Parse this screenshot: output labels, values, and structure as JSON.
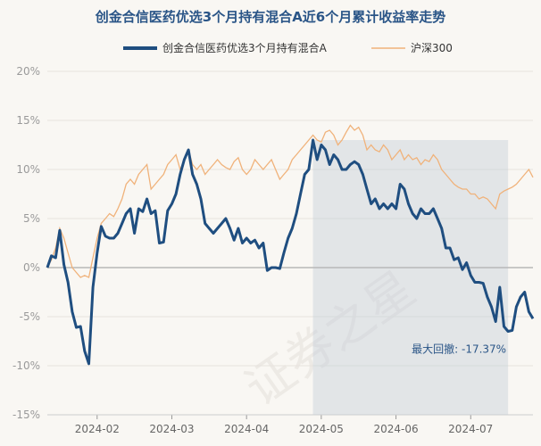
{
  "chart_data": {
    "type": "line",
    "title": "创金合信医药优选3个月持有混合A近6个月累计收益率走势",
    "ylim": [
      -15,
      20
    ],
    "yticks": [
      20,
      15,
      10,
      5,
      0,
      -5,
      -10,
      -15
    ],
    "ytick_labels": [
      "20%",
      "15%",
      "10%",
      "5%",
      "0%",
      "-5%",
      "-10%",
      "-15%"
    ],
    "xtick_labels": [
      "2024-02",
      "2024-03",
      "2024-04",
      "2024-05",
      "2024-06",
      "2024-07"
    ],
    "xtick_index": [
      12,
      30,
      48,
      66,
      84,
      102
    ],
    "n_points": 118,
    "series": [
      {
        "name": "创金合信医药优选3个月持有混合A",
        "color": "#1f4e80",
        "values": [
          0,
          1.2,
          1.0,
          3.8,
          0.3,
          -1.5,
          -4.5,
          -6.1,
          -6.0,
          -8.5,
          -9.8,
          -2.0,
          1.5,
          4.2,
          3.2,
          3.0,
          3.0,
          3.5,
          4.5,
          5.5,
          6.0,
          3.5,
          6.0,
          5.7,
          7.0,
          5.5,
          5.8,
          2.5,
          2.6,
          5.8,
          6.5,
          7.5,
          9.5,
          11.0,
          12.0,
          9.5,
          8.5,
          7.0,
          4.5,
          4.0,
          3.5,
          4.0,
          4.5,
          5.0,
          4.0,
          2.8,
          4.0,
          2.5,
          3.0,
          2.5,
          2.8,
          2.0,
          2.5,
          -0.3,
          0,
          0,
          -0.1,
          1.5,
          3.0,
          4.0,
          5.5,
          7.5,
          9.5,
          10.0,
          13.0,
          11.0,
          12.5,
          12.0,
          10.5,
          11.5,
          11.0,
          10.0,
          10.0,
          10.5,
          10.8,
          10.5,
          9.5,
          8.0,
          6.5,
          7.0,
          6.0,
          6.5,
          6.0,
          6.5,
          6.0,
          8.5,
          8.0,
          6.5,
          5.5,
          5.0,
          6.0,
          5.5,
          5.5,
          6.0,
          5.0,
          4.0,
          2.0,
          2.0,
          0.8,
          1.0,
          -0.2,
          0.5,
          -0.8,
          -1.5,
          -1.5,
          -1.6,
          -3.0,
          -4.0,
          -5.5,
          -2.0,
          -6.0,
          -6.5,
          -6.4,
          -4.0,
          -3.0,
          -2.5,
          -4.5,
          -5.2
        ]
      },
      {
        "name": "沪深300",
        "color": "#f0b27a",
        "values": [
          0,
          0.8,
          2.0,
          4.0,
          3.0,
          1.5,
          0,
          -0.5,
          -1.0,
          -0.8,
          -1.0,
          1.0,
          3.0,
          4.5,
          5.0,
          5.5,
          5.2,
          6.0,
          7.0,
          8.5,
          9.0,
          8.5,
          9.5,
          10.0,
          10.5,
          8.0,
          8.5,
          9.0,
          9.5,
          10.5,
          11.0,
          11.5,
          10.0,
          11.0,
          12.0,
          10.5,
          10.0,
          10.5,
          9.5,
          10.0,
          10.5,
          11.0,
          10.5,
          10.2,
          10.0,
          10.8,
          11.2,
          10.0,
          9.5,
          10.0,
          11.0,
          10.5,
          10.0,
          10.5,
          11.0,
          10.0,
          9.0,
          9.5,
          10.0,
          11.0,
          11.5,
          12.0,
          12.5,
          13.0,
          13.5,
          13.0,
          12.8,
          13.8,
          14.0,
          13.5,
          12.5,
          13.0,
          13.8,
          14.5,
          14.0,
          14.3,
          13.5,
          12.0,
          12.5,
          12.0,
          11.8,
          12.5,
          12.0,
          11.0,
          11.5,
          12.0,
          11.0,
          11.5,
          11.0,
          11.2,
          10.5,
          11.0,
          10.8,
          11.5,
          11.0,
          10.0,
          9.5,
          9.0,
          8.5,
          8.2,
          8.0,
          8.0,
          7.5,
          7.5,
          7.0,
          7.2,
          7.0,
          6.5,
          6.0,
          7.5,
          7.8,
          8.0,
          8.2,
          8.5,
          9.0,
          9.5,
          10.0,
          9.2
        ]
      }
    ],
    "max_drawdown": {
      "label": "最大回撤: -17.37%",
      "start_index": 64,
      "end_index": 111
    }
  },
  "watermark": "证券之星"
}
